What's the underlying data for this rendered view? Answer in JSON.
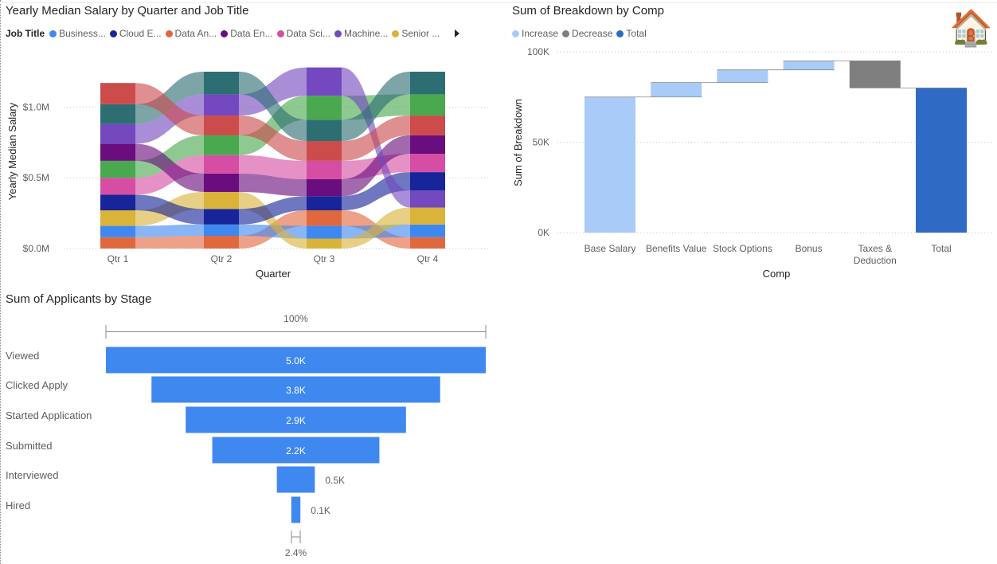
{
  "ribbon": {
    "title": "Yearly Median Salary by Quarter and Job Title",
    "legend_title": "Job Title",
    "legend": [
      {
        "label": "Business...",
        "color": "#3f88f0"
      },
      {
        "label": "Cloud E...",
        "color": "#17249a"
      },
      {
        "label": "Data An...",
        "color": "#e0683f"
      },
      {
        "label": "Data En...",
        "color": "#6a0d7e"
      },
      {
        "label": "Data Sci...",
        "color": "#d64ea3"
      },
      {
        "label": "Machine...",
        "color": "#7448bf"
      },
      {
        "label": "Senior ...",
        "color": "#d9b33a"
      }
    ],
    "more_icon": "chevron-right-icon"
  },
  "waterfall": {
    "title": "Sum of Breakdown by Comp",
    "legend": [
      {
        "label": "Increase",
        "color": "#a9cbf7"
      },
      {
        "label": "Decrease",
        "color": "#7f7f7f"
      },
      {
        "label": "Total",
        "color": "#2f6bc4"
      }
    ],
    "decoration_icon": "house-icon",
    "decoration_glyph": "🏠"
  },
  "funnel": {
    "title": "Sum of Applicants by Stage",
    "top_label": "100%",
    "bottom_label": "2.4%",
    "bar_color": "#3f88f0"
  },
  "chart_data": [
    {
      "type": "area",
      "subtype": "ribbon",
      "title": "Yearly Median Salary by Quarter and Job Title",
      "xlabel": "Quarter",
      "ylabel": "Yearly Median Salary",
      "categories": [
        "Qtr 1",
        "Qtr 2",
        "Qtr 3",
        "Qtr 4"
      ],
      "yticks": [
        "$0.0M",
        "$0.5M",
        "$1.0M"
      ],
      "ylim": [
        0,
        1.25
      ],
      "grid": true,
      "series_colors": {
        "Business": "#3f88f0",
        "Cloud": "#17249a",
        "DataAn": "#e0683f",
        "DataEn": "#6a0d7e",
        "DataSci": "#d64ea3",
        "Machine": "#7448bf",
        "Senior": "#d9b33a",
        "Green": "#4aa84f",
        "Teal": "#2d6e73",
        "Red": "#cc4b4b"
      },
      "stacks": [
        [
          [
            "DataAn",
            0.08
          ],
          [
            "Business",
            0.08
          ],
          [
            "Senior",
            0.11
          ],
          [
            "Cloud",
            0.11
          ],
          [
            "DataSci",
            0.12
          ],
          [
            "Green",
            0.12
          ],
          [
            "DataEn",
            0.12
          ],
          [
            "Machine",
            0.14
          ],
          [
            "Teal",
            0.14
          ],
          [
            "Red",
            0.15
          ]
        ],
        [
          [
            "DataAn",
            0.09
          ],
          [
            "Business",
            0.08
          ],
          [
            "Cloud",
            0.11
          ],
          [
            "Senior",
            0.12
          ],
          [
            "DataEn",
            0.13
          ],
          [
            "DataSci",
            0.13
          ],
          [
            "Green",
            0.14
          ],
          [
            "Red",
            0.14
          ],
          [
            "Machine",
            0.15
          ],
          [
            "Teal",
            0.16
          ]
        ],
        [
          [
            "Senior",
            0.07
          ],
          [
            "Business",
            0.09
          ],
          [
            "DataAn",
            0.11
          ],
          [
            "Cloud",
            0.1
          ],
          [
            "DataEn",
            0.12
          ],
          [
            "DataSci",
            0.13
          ],
          [
            "Red",
            0.14
          ],
          [
            "Teal",
            0.15
          ],
          [
            "Green",
            0.17
          ],
          [
            "Machine",
            0.2
          ]
        ],
        [
          [
            "DataAn",
            0.08
          ],
          [
            "Business",
            0.09
          ],
          [
            "Senior",
            0.12
          ],
          [
            "Machine",
            0.12
          ],
          [
            "Cloud",
            0.13
          ],
          [
            "DataSci",
            0.13
          ],
          [
            "DataEn",
            0.13
          ],
          [
            "Red",
            0.14
          ],
          [
            "Green",
            0.15
          ],
          [
            "Teal",
            0.16
          ]
        ]
      ]
    },
    {
      "type": "bar",
      "subtype": "waterfall",
      "title": "Sum of Breakdown by Comp",
      "xlabel": "Comp",
      "ylabel": "Sum of Breakdown",
      "categories": [
        "Base Salary",
        "Benefits Value",
        "Stock Options",
        "Bonus",
        "Taxes & Deduction",
        "Total"
      ],
      "kinds": [
        "Increase",
        "Increase",
        "Increase",
        "Increase",
        "Decrease",
        "Total"
      ],
      "values": [
        75000,
        8000,
        7000,
        5000,
        -15000,
        80000
      ],
      "yticks": [
        "0K",
        "50K",
        "100K"
      ],
      "ylim": [
        0,
        100000
      ],
      "grid": true
    },
    {
      "type": "bar",
      "subtype": "funnel",
      "title": "Sum of Applicants by Stage",
      "categories": [
        "Viewed",
        "Clicked Apply",
        "Started Application",
        "Submitted",
        "Interviewed",
        "Hired"
      ],
      "values": [
        5000,
        3800,
        2900,
        2200,
        500,
        120
      ],
      "value_labels": [
        "5.0K",
        "3.8K",
        "2.9K",
        "2.2K",
        "0.5K",
        "0.1K"
      ],
      "top_percent": "100%",
      "bottom_percent": "2.4%"
    }
  ]
}
